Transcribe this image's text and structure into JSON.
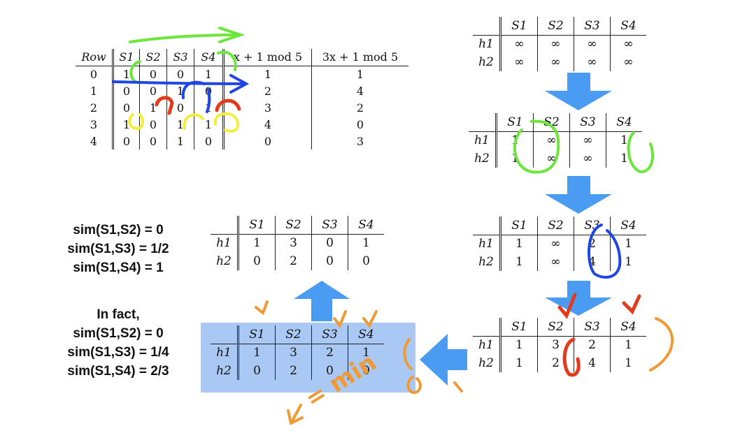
{
  "input_table": {
    "headers": [
      "Row",
      "S1",
      "S2",
      "S3",
      "S4",
      "x + 1  mod 5",
      "3x + 1  mod 5"
    ],
    "rows": [
      [
        "0",
        "1",
        "0",
        "0",
        "1",
        "1",
        "1"
      ],
      [
        "1",
        "0",
        "0",
        "1",
        "0",
        "2",
        "4"
      ],
      [
        "2",
        "0",
        "1",
        "0",
        "1",
        "3",
        "2"
      ],
      [
        "3",
        "1",
        "0",
        "1",
        "1",
        "4",
        "0"
      ],
      [
        "4",
        "0",
        "0",
        "1",
        "0",
        "0",
        "3"
      ]
    ]
  },
  "sig_tables": [
    {
      "headers": [
        "S1",
        "S2",
        "S3",
        "S4"
      ],
      "row_labels": [
        "h1",
        "h2"
      ],
      "rows": [
        [
          "∞",
          "∞",
          "∞",
          "∞"
        ],
        [
          "∞",
          "∞",
          "∞",
          "∞"
        ]
      ]
    },
    {
      "headers": [
        "S1",
        "S2",
        "S3",
        "S4"
      ],
      "row_labels": [
        "h1",
        "h2"
      ],
      "rows": [
        [
          "1",
          "∞",
          "∞",
          "1"
        ],
        [
          "1",
          "∞",
          "∞",
          "1"
        ]
      ]
    },
    {
      "headers": [
        "S1",
        "S2",
        "S3",
        "S4"
      ],
      "row_labels": [
        "h1",
        "h2"
      ],
      "rows": [
        [
          "1",
          "∞",
          "2",
          "1"
        ],
        [
          "1",
          "∞",
          "4",
          "1"
        ]
      ]
    },
    {
      "headers": [
        "S1",
        "S2",
        "S3",
        "S4"
      ],
      "row_labels": [
        "h1",
        "h2"
      ],
      "rows": [
        [
          "1",
          "3",
          "2",
          "1"
        ],
        [
          "1",
          "2",
          "4",
          "1"
        ]
      ]
    },
    {
      "headers": [
        "S1",
        "S2",
        "S3",
        "S4"
      ],
      "row_labels": [
        "h1",
        "h2"
      ],
      "rows": [
        [
          "1",
          "3",
          "2",
          "1"
        ],
        [
          "0",
          "2",
          "0",
          "0"
        ]
      ]
    },
    {
      "headers": [
        "S1",
        "S2",
        "S3",
        "S4"
      ],
      "row_labels": [
        "h1",
        "h2"
      ],
      "rows": [
        [
          "1",
          "3",
          "0",
          "1"
        ],
        [
          "0",
          "2",
          "0",
          "0"
        ]
      ]
    }
  ],
  "estimated": {
    "lines": [
      "sim(S1,S2) = 0",
      "sim(S1,S3) = 1/2",
      "sim(S1,S4) = 1"
    ]
  },
  "actual": {
    "heading": "In fact,",
    "lines": [
      "sim(S1,S2) = 0",
      "sim(S1,S3) = 1/4",
      "sim(S1,S4) = 2/3"
    ]
  },
  "annotation": {
    "text": "= min"
  },
  "colors": {
    "highlight_fill": "#a9c8f3",
    "arrow_blue": "#4a9cf2",
    "ink_green": "#6be63a",
    "ink_blue": "#1e46e6",
    "ink_red": "#e23a1a",
    "ink_yellow": "#f4ec3a",
    "ink_orange": "#f19a33"
  }
}
